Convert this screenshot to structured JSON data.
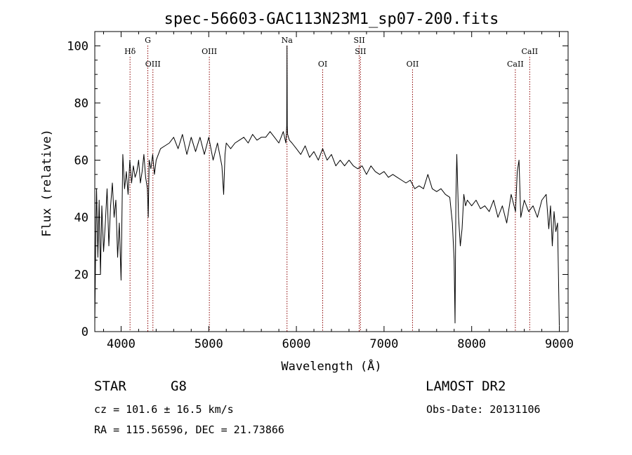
{
  "chart_data": {
    "type": "line",
    "title": "spec-56603-GAC113N23M1_sp07-200.fits",
    "xlabel": "Wavelength (Å)",
    "ylabel": "Flux (relative)",
    "xlim": [
      3700,
      9100
    ],
    "ylim": [
      0,
      105
    ],
    "xticks": [
      4000,
      5000,
      6000,
      7000,
      8000,
      9000
    ],
    "yticks": [
      0,
      20,
      40,
      60,
      80,
      100
    ],
    "grid": false,
    "line_color": "#000000",
    "marker_color": "#8b0000",
    "lines": [
      {
        "label": "Hδ",
        "x": 4102,
        "row": 1
      },
      {
        "label": "G",
        "x": 4305,
        "row": 0
      },
      {
        "label": "OIII",
        "x": 4363,
        "row": 2
      },
      {
        "label": "OIII",
        "x": 5007,
        "row": 1
      },
      {
        "label": "Na",
        "x": 5893,
        "row": 0
      },
      {
        "label": "OI",
        "x": 6300,
        "row": 2
      },
      {
        "label": "SII",
        "x": 6717,
        "row": 0
      },
      {
        "label": "SII",
        "x": 6731,
        "row": 1
      },
      {
        "label": "OII",
        "x": 7325,
        "row": 2
      },
      {
        "label": "CaII",
        "x": 8498,
        "row": 2
      },
      {
        "label": "CaII",
        "x": 8662,
        "row": 1
      }
    ],
    "spectrum": {
      "x": [
        3700,
        3710,
        3720,
        3735,
        3750,
        3765,
        3780,
        3800,
        3820,
        3840,
        3860,
        3880,
        3900,
        3920,
        3940,
        3960,
        3980,
        4000,
        4020,
        4040,
        4060,
        4080,
        4100,
        4120,
        4140,
        4160,
        4180,
        4200,
        4220,
        4240,
        4260,
        4280,
        4300,
        4310,
        4320,
        4340,
        4360,
        4380,
        4400,
        4450,
        4500,
        4550,
        4600,
        4650,
        4700,
        4750,
        4800,
        4850,
        4900,
        4950,
        5000,
        5050,
        5100,
        5150,
        5170,
        5185,
        5200,
        5250,
        5300,
        5350,
        5400,
        5450,
        5500,
        5550,
        5600,
        5650,
        5700,
        5750,
        5800,
        5850,
        5880,
        5890,
        5893,
        5896,
        5900,
        5910,
        5920,
        5950,
        6000,
        6050,
        6100,
        6150,
        6200,
        6250,
        6300,
        6350,
        6400,
        6450,
        6500,
        6550,
        6600,
        6650,
        6700,
        6750,
        6800,
        6850,
        6900,
        6950,
        7000,
        7050,
        7100,
        7150,
        7200,
        7250,
        7300,
        7350,
        7400,
        7450,
        7500,
        7550,
        7600,
        7650,
        7700,
        7750,
        7780,
        7800,
        7810,
        7820,
        7830,
        7850,
        7870,
        7890,
        7910,
        7930,
        7950,
        8000,
        8050,
        8100,
        8150,
        8200,
        8250,
        8300,
        8350,
        8400,
        8450,
        8500,
        8520,
        8540,
        8560,
        8600,
        8650,
        8700,
        8750,
        8800,
        8850,
        8880,
        8900,
        8920,
        8940,
        8960,
        8980,
        9000
      ],
      "y": [
        3,
        30,
        50,
        26,
        46,
        20,
        44,
        28,
        38,
        50,
        30,
        44,
        52,
        40,
        46,
        26,
        38,
        18,
        62,
        50,
        56,
        48,
        60,
        52,
        58,
        54,
        56,
        60,
        52,
        56,
        62,
        54,
        50,
        40,
        60,
        57,
        62,
        55,
        60,
        64,
        65,
        66,
        68,
        64,
        69,
        62,
        68,
        63,
        68,
        62,
        68,
        60,
        66,
        58,
        48,
        62,
        66,
        64,
        66,
        67,
        68,
        66,
        69,
        67,
        68,
        68,
        70,
        68,
        66,
        70,
        66,
        72,
        100,
        72,
        69,
        68,
        67,
        66,
        64,
        62,
        65,
        61,
        63,
        60,
        64,
        60,
        62,
        58,
        60,
        58,
        60,
        58,
        57,
        58,
        55,
        58,
        56,
        55,
        56,
        54,
        55,
        54,
        53,
        52,
        53,
        50,
        51,
        50,
        55,
        50,
        49,
        50,
        48,
        47,
        38,
        25,
        3,
        46,
        62,
        40,
        30,
        36,
        48,
        44,
        46,
        44,
        46,
        43,
        44,
        42,
        46,
        40,
        44,
        38,
        48,
        42,
        56,
        60,
        40,
        46,
        42,
        44,
        40,
        46,
        48,
        36,
        44,
        30,
        42,
        35,
        38,
        2
      ]
    }
  },
  "footer": {
    "object_class": "STAR",
    "subclass": "G8",
    "survey": "LAMOST DR2",
    "cz": "cz = 101.6 ± 16.5 km/s",
    "obs_date": "Obs-Date: 20131106",
    "coords": "RA = 115.56596, DEC =  21.73866"
  }
}
